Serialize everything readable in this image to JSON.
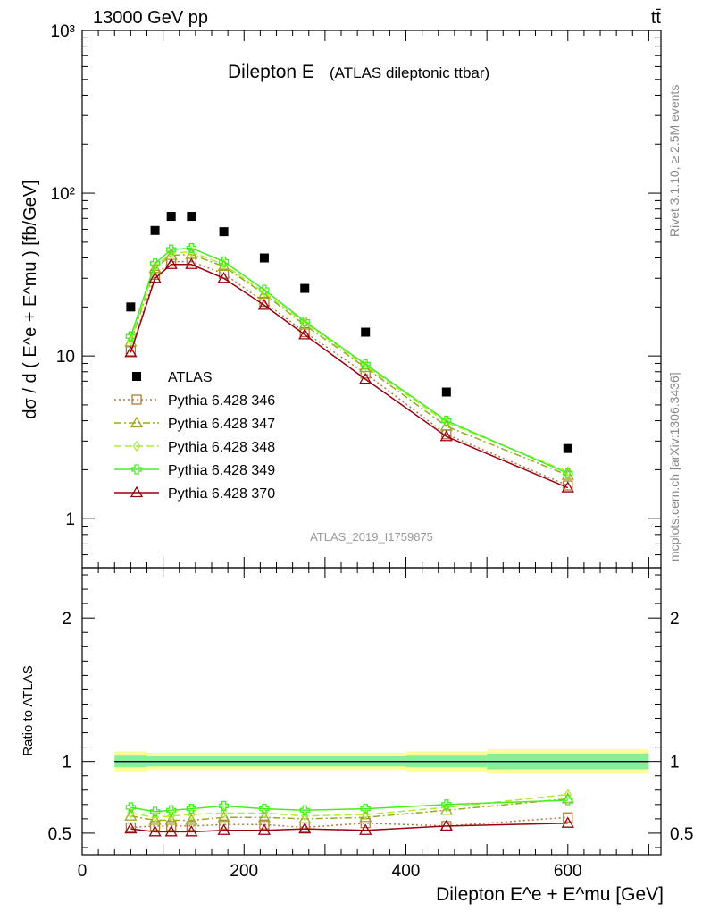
{
  "header": {
    "left": "13000 GeV pp",
    "right": "tt̄"
  },
  "side_text": {
    "top": "Rivet 3.1.10, ≥ 2.5M events",
    "bottom": "mcplots.cern.ch [arXiv:1306.3436]"
  },
  "colors": {
    "atlas": "#000000",
    "p346": "#b07a3a",
    "p347": "#9aaa20",
    "p348": "#aaee33",
    "p349": "#44ee22",
    "p370": "#990011",
    "band_outer": "#ffff99",
    "band_inner": "#88ee99"
  },
  "chart_data": [
    {
      "type": "line",
      "title": "Dilepton E",
      "subtitle": "(ATLAS dileptonic ttbar)",
      "analysis_label": "ATLAS_2019_I1759875",
      "ylabel": "dσ / d ( E^e + E^mu ) [fb/GeV]",
      "yscale": "log",
      "ylim": [
        0.5,
        1000
      ],
      "xlim": [
        0,
        715
      ],
      "y_ticks": [
        {
          "value": 1,
          "label": "1"
        },
        {
          "value": 10,
          "label": "10"
        },
        {
          "value": 100,
          "label": "10²"
        },
        {
          "value": 1000,
          "label": "10³"
        }
      ],
      "x": [
        60,
        90,
        110,
        135,
        175,
        225,
        275,
        350,
        450,
        600
      ],
      "series": [
        {
          "name": "ATLAS",
          "key": "atlas",
          "marker": "square",
          "values": [
            20,
            59,
            72,
            72,
            58,
            40,
            26,
            14,
            6.0,
            2.7
          ]
        },
        {
          "name": "Pythia 6.428 346",
          "key": "p346",
          "marker": "square-open",
          "dash": "2,3",
          "values": [
            10.7,
            31.5,
            38,
            38,
            32,
            21.5,
            14,
            7.8,
            3.3,
            1.6
          ]
        },
        {
          "name": "Pythia 6.428 347",
          "key": "p347",
          "marker": "triangle-open",
          "dash": "8,3,2,3",
          "values": [
            12.2,
            34.5,
            41.5,
            42,
            35.5,
            24,
            15.5,
            8.5,
            3.7,
            1.85
          ]
        },
        {
          "name": "Pythia 6.428 348",
          "key": "p348",
          "marker": "diamond-open",
          "dash": "8,4",
          "values": [
            12.5,
            35.5,
            43,
            43.5,
            36.5,
            24.5,
            16,
            8.7,
            3.9,
            1.95
          ]
        },
        {
          "name": "Pythia 6.428 349",
          "key": "p349",
          "marker": "plus-open",
          "dash": "",
          "values": [
            13.2,
            37,
            45,
            46,
            38,
            25.5,
            16.3,
            8.9,
            4.0,
            1.9
          ]
        },
        {
          "name": "Pythia 6.428 370",
          "key": "p370",
          "marker": "triangle-open",
          "dash": "",
          "values": [
            10.5,
            30,
            36.5,
            36.5,
            30,
            20.5,
            13.5,
            7.2,
            3.2,
            1.55
          ]
        }
      ]
    },
    {
      "type": "line",
      "ylabel": "Ratio to ATLAS",
      "xlabel": "Dilepton E^e + E^mu [GeV]",
      "ylim": [
        0.35,
        2.35
      ],
      "xlim": [
        0,
        715
      ],
      "y_ticks": [
        {
          "value": 0.5,
          "label": "0.5"
        },
        {
          "value": 1,
          "label": "1"
        },
        {
          "value": 2,
          "label": "2"
        }
      ],
      "x_ticks": [
        {
          "value": 0,
          "label": "0"
        },
        {
          "value": 200,
          "label": "200"
        },
        {
          "value": 400,
          "label": "400"
        },
        {
          "value": 600,
          "label": "600"
        }
      ],
      "uncertainty_band": {
        "bins": [
          [
            40,
            80
          ],
          [
            80,
            400
          ],
          [
            400,
            500
          ],
          [
            500,
            700
          ]
        ],
        "outer": [
          0.07,
          0.06,
          0.07,
          0.085
        ],
        "inner": [
          0.04,
          0.035,
          0.04,
          0.055
        ]
      },
      "x": [
        60,
        90,
        110,
        135,
        175,
        225,
        275,
        350,
        450,
        600
      ],
      "series": [
        {
          "name": "Pythia 6.428 346",
          "key": "p346",
          "marker": "square-open",
          "dash": "2,3",
          "values": [
            0.54,
            0.55,
            0.55,
            0.55,
            0.56,
            0.56,
            0.54,
            0.57,
            0.55,
            0.61
          ]
        },
        {
          "name": "Pythia 6.428 347",
          "key": "p347",
          "marker": "triangle-open",
          "dash": "8,3,2,3",
          "values": [
            0.62,
            0.59,
            0.59,
            0.59,
            0.61,
            0.61,
            0.6,
            0.61,
            0.66,
            0.74
          ]
        },
        {
          "name": "Pythia 6.428 348",
          "key": "p348",
          "marker": "diamond-open",
          "dash": "8,4",
          "values": [
            0.64,
            0.61,
            0.62,
            0.63,
            0.64,
            0.64,
            0.62,
            0.63,
            0.68,
            0.77
          ]
        },
        {
          "name": "Pythia 6.428 349",
          "key": "p349",
          "marker": "plus-open",
          "dash": "",
          "values": [
            0.68,
            0.65,
            0.66,
            0.67,
            0.69,
            0.67,
            0.66,
            0.67,
            0.7,
            0.73
          ]
        },
        {
          "name": "Pythia 6.428 370",
          "key": "p370",
          "marker": "triangle-open",
          "dash": "",
          "values": [
            0.53,
            0.51,
            0.51,
            0.51,
            0.52,
            0.52,
            0.53,
            0.52,
            0.55,
            0.57
          ]
        }
      ]
    }
  ]
}
